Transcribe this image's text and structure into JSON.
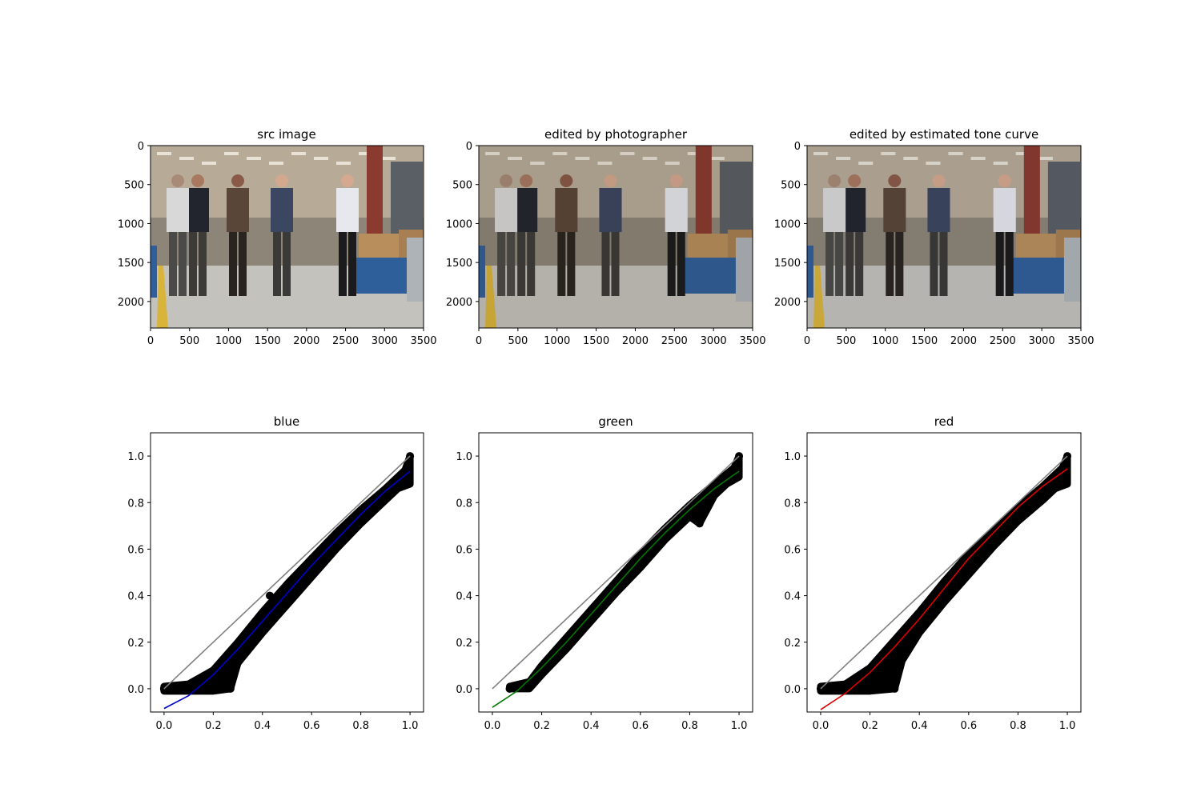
{
  "chart_data": [
    {
      "type": "image",
      "title": "src image",
      "xlim": [
        0,
        3500
      ],
      "ylim": [
        2340,
        0
      ],
      "xticks": [
        0,
        500,
        1000,
        1500,
        2000,
        2500,
        3000,
        3500
      ],
      "yticks": [
        0,
        500,
        1000,
        1500,
        2000
      ],
      "image_content": "photo of five people walking through a factory floor"
    },
    {
      "type": "image",
      "title": "edited by photographer",
      "xlim": [
        0,
        3500
      ],
      "ylim": [
        2340,
        0
      ],
      "xticks": [
        0,
        500,
        1000,
        1500,
        2000,
        2500,
        3000,
        3500
      ],
      "yticks": [
        0,
        500,
        1000,
        1500,
        2000
      ],
      "image_content": "same factory photo, edited, slightly darker"
    },
    {
      "type": "image",
      "title": "edited by estimated tone curve",
      "xlim": [
        0,
        3500
      ],
      "ylim": [
        2340,
        0
      ],
      "xticks": [
        0,
        500,
        1000,
        1500,
        2000,
        2500,
        3000,
        3500
      ],
      "yticks": [
        0,
        500,
        1000,
        1500,
        2000
      ],
      "image_content": "same factory photo, edited via tone curve"
    },
    {
      "type": "scatter",
      "title": "blue",
      "xlim": [
        -0.055,
        1.055
      ],
      "ylim": [
        -0.1,
        1.1
      ],
      "xticks": [
        0.0,
        0.2,
        0.4,
        0.6,
        0.8,
        1.0
      ],
      "yticks": [
        0.0,
        0.2,
        0.4,
        0.6,
        0.8,
        1.0
      ],
      "tick_labels": [
        "0.0",
        "0.2",
        "0.4",
        "0.6",
        "0.8",
        "1.0"
      ],
      "identity_line": [
        [
          0,
          0
        ],
        [
          1,
          1
        ]
      ],
      "identity_color": "#808080",
      "curve_color": "#0000cc",
      "curve": [
        [
          0.0,
          -0.085
        ],
        [
          0.1,
          -0.03
        ],
        [
          0.2,
          0.06
        ],
        [
          0.3,
          0.17
        ],
        [
          0.4,
          0.29
        ],
        [
          0.5,
          0.41
        ],
        [
          0.6,
          0.53
        ],
        [
          0.7,
          0.64
        ],
        [
          0.8,
          0.75
        ],
        [
          0.9,
          0.85
        ],
        [
          1.0,
          0.935
        ]
      ],
      "scatter_band_upper": [
        [
          0.0,
          0.01
        ],
        [
          0.1,
          0.02
        ],
        [
          0.2,
          0.08
        ],
        [
          0.3,
          0.2
        ],
        [
          0.4,
          0.33
        ],
        [
          0.5,
          0.45
        ],
        [
          0.6,
          0.56
        ],
        [
          0.7,
          0.67
        ],
        [
          0.8,
          0.77
        ],
        [
          0.9,
          0.86
        ],
        [
          0.98,
          0.94
        ],
        [
          1.0,
          1.0
        ]
      ],
      "scatter_band_lower": [
        [
          1.0,
          0.88
        ],
        [
          0.95,
          0.86
        ],
        [
          0.9,
          0.81
        ],
        [
          0.8,
          0.71
        ],
        [
          0.7,
          0.6
        ],
        [
          0.6,
          0.48
        ],
        [
          0.5,
          0.36
        ],
        [
          0.4,
          0.24
        ],
        [
          0.3,
          0.11
        ],
        [
          0.27,
          0.0
        ],
        [
          0.2,
          -0.01
        ],
        [
          0.0,
          -0.01
        ]
      ],
      "scatter_points": [
        [
          0.0,
          0.0
        ],
        [
          0.43,
          0.4
        ],
        [
          0.27,
          0.0
        ],
        [
          1.0,
          1.0
        ],
        [
          0.0,
          0.0
        ]
      ]
    },
    {
      "type": "scatter",
      "title": "green",
      "xlim": [
        -0.055,
        1.055
      ],
      "ylim": [
        -0.1,
        1.1
      ],
      "xticks": [
        0.0,
        0.2,
        0.4,
        0.6,
        0.8,
        1.0
      ],
      "yticks": [
        0.0,
        0.2,
        0.4,
        0.6,
        0.8,
        1.0
      ],
      "tick_labels": [
        "0.0",
        "0.2",
        "0.4",
        "0.6",
        "0.8",
        "1.0"
      ],
      "identity_line": [
        [
          0,
          0
        ],
        [
          1,
          1
        ]
      ],
      "identity_color": "#808080",
      "curve_color": "#007700",
      "curve": [
        [
          0.0,
          -0.08
        ],
        [
          0.1,
          -0.01
        ],
        [
          0.2,
          0.09
        ],
        [
          0.3,
          0.2
        ],
        [
          0.4,
          0.32
        ],
        [
          0.5,
          0.44
        ],
        [
          0.6,
          0.56
        ],
        [
          0.7,
          0.67
        ],
        [
          0.8,
          0.77
        ],
        [
          0.9,
          0.86
        ],
        [
          1.0,
          0.935
        ]
      ],
      "scatter_band_upper": [
        [
          0.07,
          0.01
        ],
        [
          0.15,
          0.03
        ],
        [
          0.2,
          0.1
        ],
        [
          0.3,
          0.22
        ],
        [
          0.4,
          0.34
        ],
        [
          0.5,
          0.46
        ],
        [
          0.6,
          0.58
        ],
        [
          0.7,
          0.69
        ],
        [
          0.8,
          0.79
        ],
        [
          0.9,
          0.88
        ],
        [
          0.98,
          0.95
        ],
        [
          1.0,
          1.0
        ]
      ],
      "scatter_band_lower": [
        [
          1.0,
          0.91
        ],
        [
          0.95,
          0.88
        ],
        [
          0.9,
          0.83
        ],
        [
          0.84,
          0.71
        ],
        [
          0.8,
          0.74
        ],
        [
          0.7,
          0.64
        ],
        [
          0.6,
          0.52
        ],
        [
          0.5,
          0.41
        ],
        [
          0.4,
          0.29
        ],
        [
          0.3,
          0.17
        ],
        [
          0.2,
          0.06
        ],
        [
          0.15,
          0.0
        ],
        [
          0.07,
          0.0
        ]
      ],
      "scatter_points": [
        [
          0.07,
          0.0
        ],
        [
          0.84,
          0.71
        ],
        [
          1.0,
          1.0
        ]
      ]
    },
    {
      "type": "scatter",
      "title": "red",
      "xlim": [
        -0.055,
        1.055
      ],
      "ylim": [
        -0.1,
        1.1
      ],
      "xticks": [
        0.0,
        0.2,
        0.4,
        0.6,
        0.8,
        1.0
      ],
      "yticks": [
        0.0,
        0.2,
        0.4,
        0.6,
        0.8,
        1.0
      ],
      "tick_labels": [
        "0.0",
        "0.2",
        "0.4",
        "0.6",
        "0.8",
        "1.0"
      ],
      "identity_line": [
        [
          0,
          0
        ],
        [
          1,
          1
        ]
      ],
      "identity_color": "#808080",
      "curve_color": "#dd0000",
      "curve": [
        [
          0.0,
          -0.09
        ],
        [
          0.1,
          -0.02
        ],
        [
          0.2,
          0.07
        ],
        [
          0.3,
          0.18
        ],
        [
          0.4,
          0.3
        ],
        [
          0.5,
          0.43
        ],
        [
          0.6,
          0.56
        ],
        [
          0.7,
          0.67
        ],
        [
          0.8,
          0.78
        ],
        [
          0.9,
          0.87
        ],
        [
          1.0,
          0.945
        ]
      ],
      "scatter_band_upper": [
        [
          0.0,
          0.01
        ],
        [
          0.1,
          0.02
        ],
        [
          0.2,
          0.09
        ],
        [
          0.3,
          0.21
        ],
        [
          0.4,
          0.33
        ],
        [
          0.5,
          0.46
        ],
        [
          0.6,
          0.58
        ],
        [
          0.7,
          0.68
        ],
        [
          0.8,
          0.78
        ],
        [
          0.9,
          0.87
        ],
        [
          0.98,
          0.95
        ],
        [
          1.0,
          1.0
        ]
      ],
      "scatter_band_lower": [
        [
          1.0,
          0.88
        ],
        [
          0.95,
          0.86
        ],
        [
          0.9,
          0.81
        ],
        [
          0.8,
          0.72
        ],
        [
          0.7,
          0.61
        ],
        [
          0.6,
          0.49
        ],
        [
          0.5,
          0.37
        ],
        [
          0.4,
          0.24
        ],
        [
          0.33,
          0.12
        ],
        [
          0.3,
          0.0
        ],
        [
          0.2,
          -0.01
        ],
        [
          0.0,
          -0.01
        ]
      ],
      "scatter_points": [
        [
          0.0,
          0.0
        ],
        [
          0.3,
          0.0
        ],
        [
          1.0,
          1.0
        ]
      ]
    }
  ]
}
